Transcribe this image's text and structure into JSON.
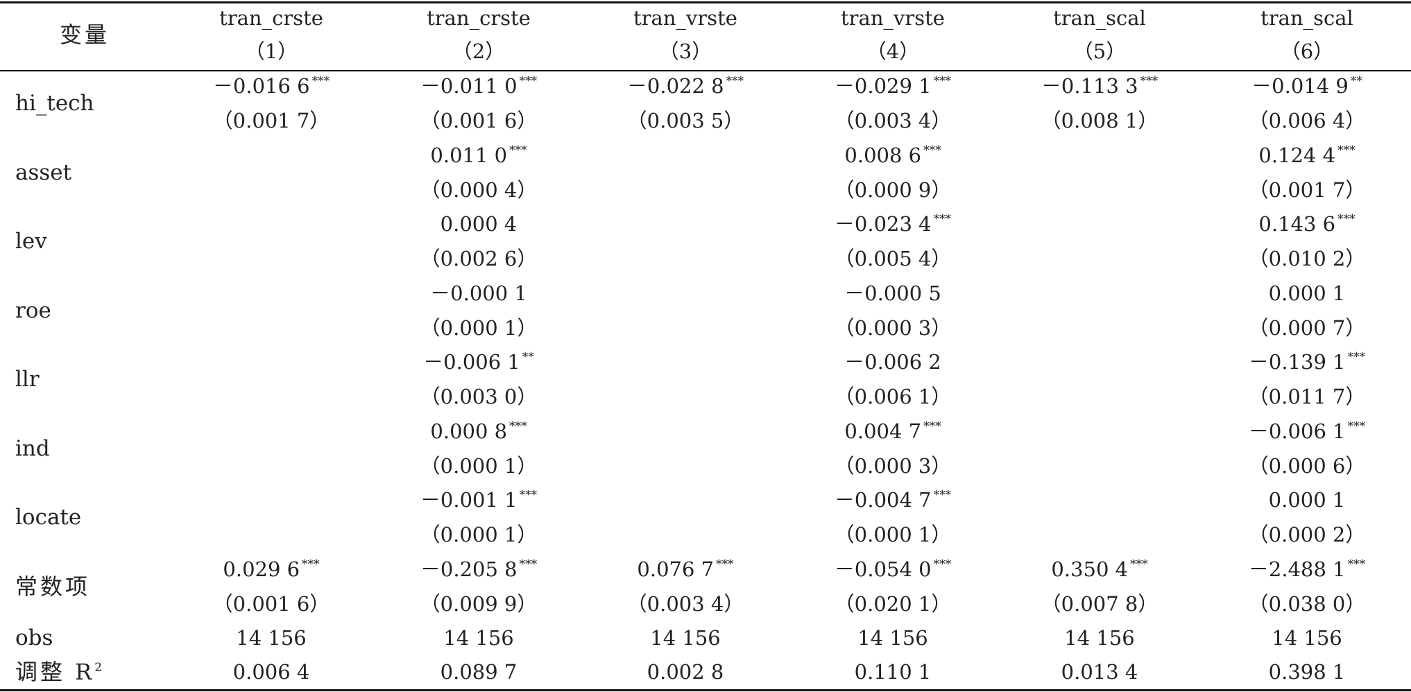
{
  "table": {
    "variable_header": "变量",
    "columns": [
      {
        "name": "tran_crste",
        "num": "（1）"
      },
      {
        "name": "tran_crste",
        "num": "（2）"
      },
      {
        "name": "tran_vrste",
        "num": "（3）"
      },
      {
        "name": "tran_vrste",
        "num": "（4）"
      },
      {
        "name": "tran_scal",
        "num": "（5）"
      },
      {
        "name": "tran_scal",
        "num": "（6）"
      }
    ],
    "rows": [
      {
        "label": "hi_tech",
        "coef": [
          "－0.016 6",
          "－0.011 0",
          "－0.022 8",
          "－0.029 1",
          "－0.113 3",
          "－0.014 9"
        ],
        "stars": [
          "***",
          "***",
          "***",
          "***",
          "***",
          "**"
        ],
        "se": [
          "（0.001 7）",
          "（0.001 6）",
          "（0.003 5）",
          "（0.003 4）",
          "（0.008 1）",
          "（0.006 4）"
        ]
      },
      {
        "label": "asset",
        "coef": [
          "",
          "0.011 0",
          "",
          "0.008 6",
          "",
          "0.124 4"
        ],
        "stars": [
          "",
          "***",
          "",
          "***",
          "",
          "***"
        ],
        "se": [
          "",
          "（0.000 4）",
          "",
          "（0.000 9）",
          "",
          "（0.001 7）"
        ]
      },
      {
        "label": "lev",
        "coef": [
          "",
          "0.000 4",
          "",
          "－0.023 4",
          "",
          "0.143 6"
        ],
        "stars": [
          "",
          "",
          "",
          "***",
          "",
          "***"
        ],
        "se": [
          "",
          "（0.002 6）",
          "",
          "（0.005 4）",
          "",
          "（0.010 2）"
        ]
      },
      {
        "label": "roe",
        "coef": [
          "",
          "－0.000 1",
          "",
          "－0.000 5",
          "",
          "0.000 1"
        ],
        "stars": [
          "",
          "",
          "",
          "",
          "",
          ""
        ],
        "se": [
          "",
          "（0.000 1）",
          "",
          "（0.000 3）",
          "",
          "（0.000 7）"
        ]
      },
      {
        "label": "llr",
        "coef": [
          "",
          "－0.006 1",
          "",
          "－0.006 2",
          "",
          "－0.139 1"
        ],
        "stars": [
          "",
          "**",
          "",
          "",
          "",
          "***"
        ],
        "se": [
          "",
          "（0.003 0）",
          "",
          "（0.006 1）",
          "",
          "（0.011 7）"
        ]
      },
      {
        "label": "ind",
        "coef": [
          "",
          "0.000 8",
          "",
          "0.004 7",
          "",
          "－0.006 1"
        ],
        "stars": [
          "",
          "***",
          "",
          "***",
          "",
          "***"
        ],
        "se": [
          "",
          "（0.000 1）",
          "",
          "（0.000 3）",
          "",
          "（0.000 6）"
        ]
      },
      {
        "label": "locate",
        "coef": [
          "",
          "－0.001 1",
          "",
          "－0.004 7",
          "",
          "0.000 1"
        ],
        "stars": [
          "",
          "***",
          "",
          "***",
          "",
          ""
        ],
        "se": [
          "",
          "（0.000 1）",
          "",
          "（0.000 1）",
          "",
          "（0.000 2）"
        ]
      },
      {
        "label": "常数项",
        "coef": [
          "0.029 6",
          "－0.205 8",
          "0.076 7",
          "－0.054 0",
          "0.350 4",
          "－2.488 1"
        ],
        "stars": [
          "***",
          "***",
          "***",
          "***",
          "***",
          "***"
        ],
        "se": [
          "（0.001 6）",
          "（0.009 9）",
          "（0.003 4）",
          "（0.020 1）",
          "（0.007 8）",
          "（0.038 0）"
        ]
      }
    ],
    "obs": {
      "label": "obs",
      "values": [
        "14 156",
        "14 156",
        "14 156",
        "14 156",
        "14 156",
        "14 156"
      ]
    },
    "adj_r2": {
      "label": "调整 R",
      "sup": "2",
      "values": [
        "0.006 4",
        "0.089 7",
        "0.002 8",
        "0.110 1",
        "0.013 4",
        "0.398 1"
      ]
    }
  }
}
